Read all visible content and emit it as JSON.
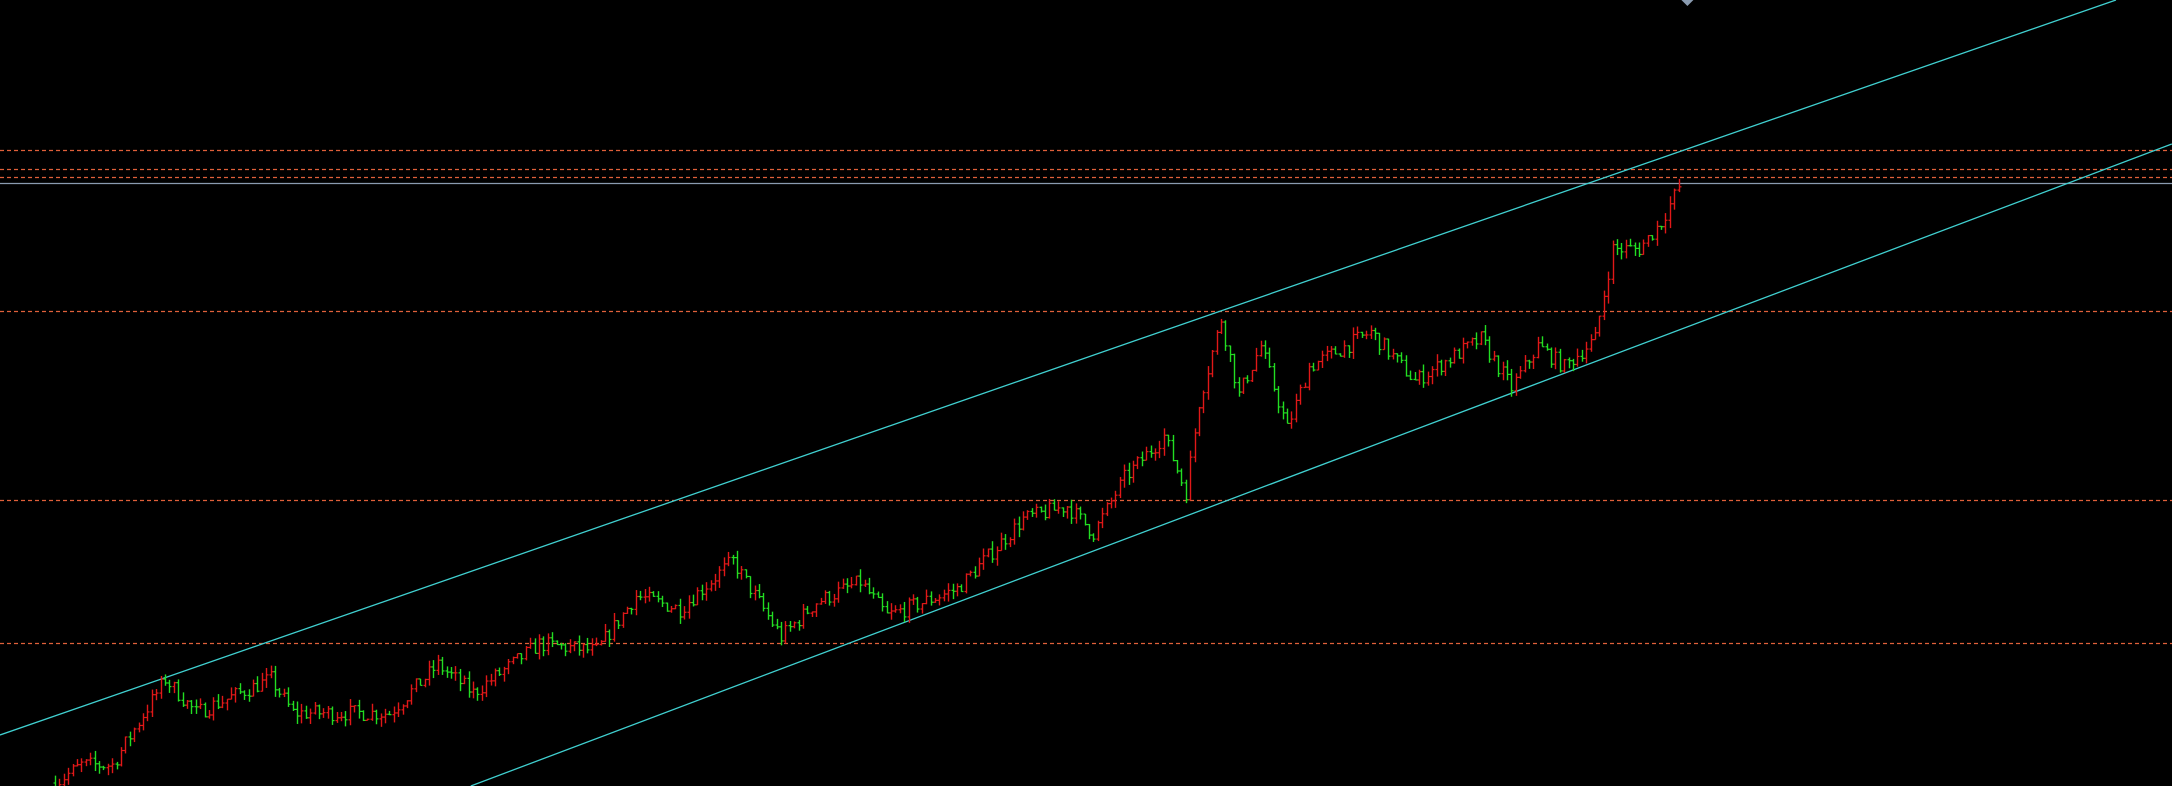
{
  "chart_data": {
    "type": "ohlc",
    "title": "",
    "xlabel": "",
    "ylabel": "",
    "grid": false,
    "legend": "none",
    "colors": {
      "background": "#000000",
      "up_bar": "#e01818",
      "down_bar": "#22dd22",
      "channel_line": "#40d0d0",
      "level_line": "#e0603a",
      "current_price_line": "#8a9bb0",
      "marker": "#8a9bb0"
    },
    "bar_count": 370,
    "close_path": [
      [
        0,
        3
      ],
      [
        6,
        21
      ],
      [
        13,
        21
      ],
      [
        25,
        107
      ],
      [
        32,
        73
      ],
      [
        49,
        107
      ],
      [
        54,
        73
      ],
      [
        76,
        73
      ],
      [
        87,
        121
      ],
      [
        95,
        93
      ],
      [
        110,
        142
      ],
      [
        123,
        135
      ],
      [
        132,
        190
      ],
      [
        142,
        177
      ],
      [
        154,
        225
      ],
      [
        165,
        149
      ],
      [
        173,
        184
      ],
      [
        183,
        204
      ],
      [
        189,
        170
      ],
      [
        205,
        197
      ],
      [
        220,
        267
      ],
      [
        230,
        280
      ],
      [
        236,
        253
      ],
      [
        243,
        308
      ],
      [
        252,
        350
      ],
      [
        257,
        294
      ],
      [
        260,
        384
      ],
      [
        265,
        467
      ],
      [
        269,
        391
      ],
      [
        274,
        440
      ],
      [
        280,
        357
      ],
      [
        285,
        419
      ],
      [
        299,
        454
      ],
      [
        309,
        405
      ],
      [
        324,
        447
      ],
      [
        331,
        398
      ],
      [
        337,
        440
      ],
      [
        343,
        419
      ],
      [
        350,
        447
      ],
      [
        354,
        537
      ],
      [
        360,
        537
      ],
      [
        365,
        564
      ],
      [
        369,
        599
      ]
    ],
    "horizontal_levels": [
      {
        "price": 636,
        "style": "dashed"
      },
      {
        "price": 617,
        "style": "dashed"
      },
      {
        "price": 609,
        "style": "dashed"
      },
      {
        "price": 603,
        "style": "solid"
      },
      {
        "price": 475,
        "style": "dashed"
      },
      {
        "price": 286,
        "style": "dashed"
      },
      {
        "price": 143,
        "style": "dashed"
      }
    ],
    "channel_lines": [
      {
        "name_id": "upper",
        "from": [
          -12.5,
          51
        ],
        "to": [
          468.4,
          786
        ]
      },
      {
        "name_id": "lower",
        "from": [
          94.5,
          0
        ],
        "to": [
          481.1,
          642
        ]
      }
    ],
    "marker": {
      "shape": "diamond",
      "bar_index": 371
    }
  }
}
